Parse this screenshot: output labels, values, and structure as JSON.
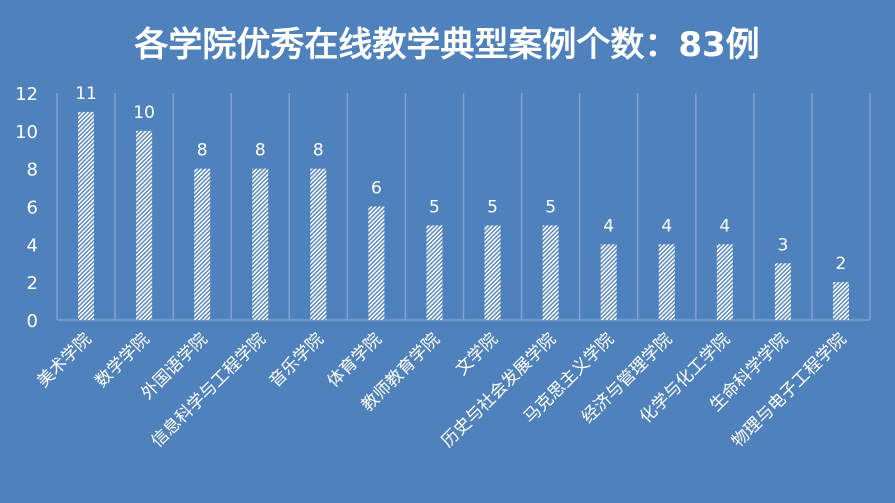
{
  "chart_data": {
    "type": "bar",
    "title": "各学院优秀在线教学典型案例个数：83例",
    "categories": [
      "美术学院",
      "数学学院",
      "外国语学院",
      "信息科学与工程学院",
      "音乐学院",
      "体育学院",
      "教师教育学院",
      "文学院",
      "历史与社会发展学院",
      "马克思主义学院",
      "经济与管理学院",
      "化学与化工学院",
      "生命科学学院",
      "物理与电子工程学院"
    ],
    "values": [
      11,
      10,
      8,
      8,
      8,
      6,
      5,
      5,
      5,
      4,
      4,
      4,
      3,
      2
    ],
    "ylim": [
      0,
      12
    ],
    "yticks": [
      0,
      2,
      4,
      6,
      8,
      10,
      12
    ],
    "data_labels": true,
    "grid": "vertical category separators",
    "legend": "none",
    "bar_fill": "white diagonal hatch",
    "colors": {
      "background": "#4f81bd",
      "bar": "#ffffff",
      "grid": "#7fa1d1"
    }
  }
}
